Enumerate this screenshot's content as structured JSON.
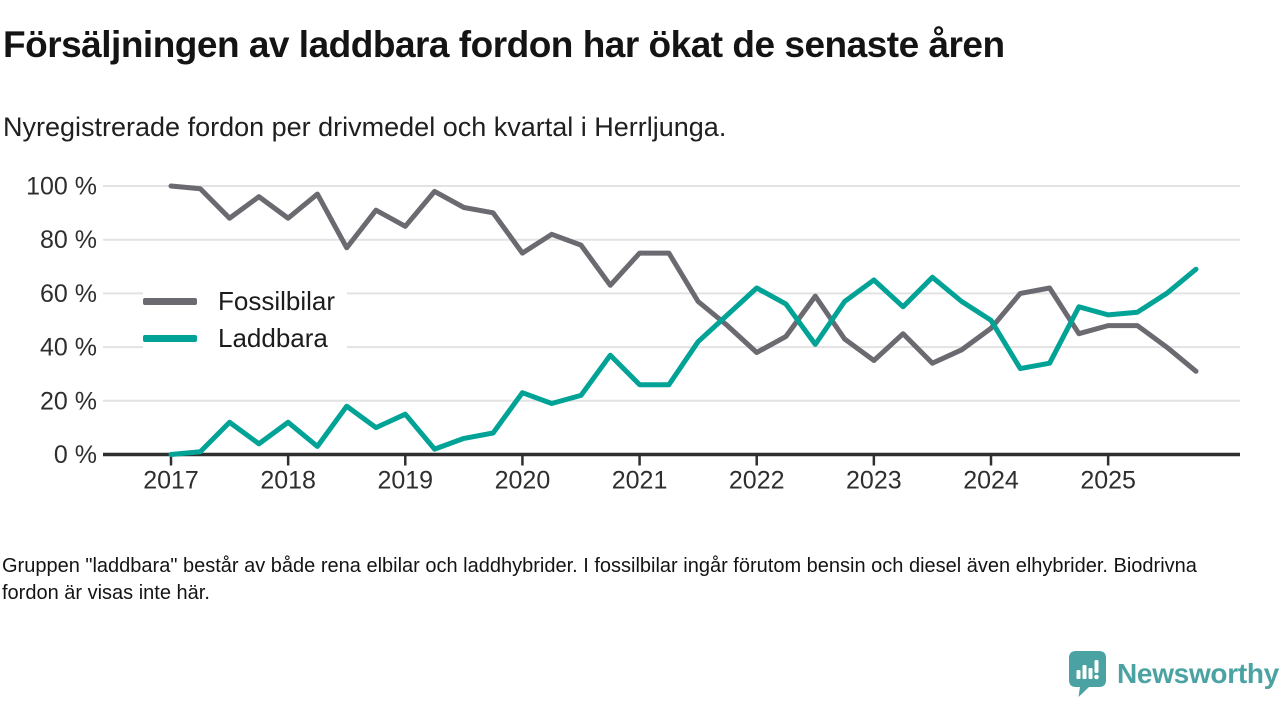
{
  "chart_data": {
    "type": "line",
    "title": "Försäljningen av laddbara fordon har ökat de senaste åren",
    "subtitle": "Nyregistrerade fordon per drivmedel och kvartal i Herrljunga.",
    "footnote": "Gruppen \"laddbara\" består av både rena elbilar och laddhybrider. I fossilbilar ingår förutom bensin och diesel även elhybrider. Biodrivna fordon är visas inte här.",
    "xlabel": "",
    "ylabel": "",
    "ylim": [
      0,
      100
    ],
    "grid": true,
    "legend_position": "inside-top-left",
    "y_ticks": [
      {
        "value": 0,
        "label": "0 %"
      },
      {
        "value": 20,
        "label": "20 %"
      },
      {
        "value": 40,
        "label": "40 %"
      },
      {
        "value": 60,
        "label": "60 %"
      },
      {
        "value": 80,
        "label": "80 %"
      },
      {
        "value": 100,
        "label": "100 %"
      }
    ],
    "x_tick_labels": [
      "2017",
      "2018",
      "2019",
      "2020",
      "2021",
      "2022",
      "2023",
      "2024",
      "2025"
    ],
    "x": [
      "2017 Q1",
      "2017 Q2",
      "2017 Q3",
      "2017 Q4",
      "2018 Q1",
      "2018 Q2",
      "2018 Q3",
      "2018 Q4",
      "2019 Q1",
      "2019 Q2",
      "2019 Q3",
      "2019 Q4",
      "2020 Q1",
      "2020 Q2",
      "2020 Q3",
      "2020 Q4",
      "2021 Q1",
      "2021 Q2",
      "2021 Q3",
      "2021 Q4",
      "2022 Q1",
      "2022 Q2",
      "2022 Q3",
      "2022 Q4",
      "2023 Q1",
      "2023 Q2",
      "2023 Q3",
      "2023 Q4",
      "2024 Q1",
      "2024 Q2",
      "2024 Q3",
      "2024 Q4",
      "2025 Q1",
      "2025 Q2",
      "2025 Q3",
      "2025 Q4"
    ],
    "series": [
      {
        "name": "Fossilbilar",
        "color": "#6a6a70",
        "values": [
          100,
          99,
          88,
          96,
          88,
          97,
          77,
          91,
          85,
          98,
          92,
          90,
          75,
          82,
          78,
          63,
          75,
          75,
          57,
          48,
          38,
          44,
          59,
          43,
          35,
          45,
          34,
          39,
          47,
          60,
          62,
          45,
          48,
          48,
          40,
          31
        ]
      },
      {
        "name": "Laddbara",
        "color": "#00a396",
        "values": [
          0,
          1,
          12,
          4,
          12,
          3,
          18,
          10,
          15,
          2,
          6,
          8,
          23,
          19,
          22,
          37,
          26,
          26,
          42,
          52,
          62,
          56,
          41,
          57,
          65,
          55,
          66,
          57,
          50,
          32,
          34,
          55,
          52,
          53,
          60,
          69
        ]
      }
    ],
    "axis_color": "#2f2f2f",
    "gridline_color": "#e3e3e3",
    "tick_label_color": "#2e2e2e"
  },
  "logo": {
    "brand": "Newsworthy",
    "color": "#4aa3a2"
  }
}
